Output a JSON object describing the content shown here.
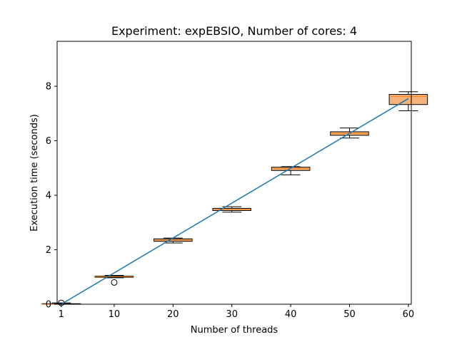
{
  "chart_data": {
    "type": "box",
    "title": "Experiment: expEBSIO, Number of cores: 4",
    "xlabel": "Number of threads",
    "ylabel": "Execution time (seconds)",
    "xlim": [
      0.3,
      60.5
    ],
    "ylim": [
      0,
      9.65
    ],
    "xticks": [
      1,
      10,
      20,
      30,
      40,
      50,
      60
    ],
    "yticks": [
      0,
      2,
      4,
      6,
      8
    ],
    "grid": false,
    "legend": "none",
    "colors": {
      "line": "#1f77b4",
      "box_fill": "#f4b37a",
      "median": "#ff7f0e",
      "whisker": "#000000"
    },
    "fit_line": {
      "x": [
        1,
        60
      ],
      "y": [
        0.0,
        7.55
      ]
    },
    "boxes": [
      {
        "x": 1,
        "whislo": 0.0,
        "q1": 0.0,
        "med": 0.0,
        "q3": 0.02,
        "whishi": 0.05,
        "fliers": [
          0.05
        ]
      },
      {
        "x": 10,
        "whislo": 0.97,
        "q1": 0.99,
        "med": 1.01,
        "q3": 1.03,
        "whishi": 1.06,
        "fliers": [
          0.8
        ]
      },
      {
        "x": 20,
        "whislo": 2.25,
        "q1": 2.31,
        "med": 2.35,
        "q3": 2.4,
        "whishi": 2.43,
        "fliers": []
      },
      {
        "x": 30,
        "whislo": 3.38,
        "q1": 3.44,
        "med": 3.48,
        "q3": 3.52,
        "whishi": 3.58,
        "fliers": []
      },
      {
        "x": 40,
        "whislo": 4.75,
        "q1": 4.91,
        "med": 4.98,
        "q3": 5.03,
        "whishi": 5.05,
        "fliers": []
      },
      {
        "x": 50,
        "whislo": 6.1,
        "q1": 6.2,
        "med": 6.27,
        "q3": 6.33,
        "whishi": 6.47,
        "fliers": []
      },
      {
        "x": 60,
        "whislo": 7.1,
        "q1": 7.33,
        "med": 7.62,
        "q3": 7.7,
        "whishi": 7.8,
        "fliers": []
      }
    ]
  }
}
